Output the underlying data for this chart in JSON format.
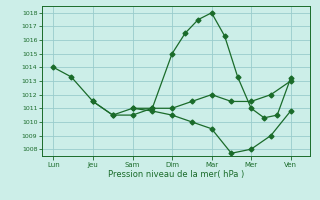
{
  "background_color": "#cceee8",
  "grid_color": "#99cccc",
  "line_color": "#1a6b2a",
  "xlabel": "Pression niveau de la mer( hPa )",
  "ylim": [
    1007.5,
    1018.5
  ],
  "yticks": [
    1008,
    1009,
    1010,
    1011,
    1012,
    1013,
    1014,
    1015,
    1016,
    1017,
    1018
  ],
  "x_labels": [
    "Lun",
    "Jeu",
    "Sam",
    "Dim",
    "Mar",
    "Mer",
    "Ven"
  ],
  "x_positions": [
    0,
    1,
    2,
    3,
    4,
    5,
    6
  ],
  "xlim": [
    -0.3,
    6.5
  ],
  "line1_x": [
    0,
    0.45,
    1,
    1.5,
    2,
    2.5,
    3,
    3.33,
    3.66,
    4,
    4.33,
    4.66,
    5,
    5.33,
    5.66,
    6
  ],
  "line1_y": [
    1014,
    1013.3,
    1011.5,
    1010.5,
    1011,
    1011,
    1015,
    1016.5,
    1017.5,
    1018,
    1016.3,
    1013.3,
    1011,
    1010.3,
    1010.5,
    1013.2
  ],
  "line2_x": [
    1,
    1.5,
    2,
    2.5,
    3,
    3.5,
    4,
    4.5,
    5,
    5.5,
    6
  ],
  "line2_y": [
    1011.5,
    1010.5,
    1010.5,
    1011,
    1011,
    1011.5,
    1012,
    1011.5,
    1011.5,
    1012,
    1013
  ],
  "line3_x": [
    2,
    2.5,
    3,
    3.5,
    4,
    4.5,
    5,
    5.5,
    6
  ],
  "line3_y": [
    1011,
    1010.8,
    1010.5,
    1010.0,
    1009.5,
    1007.7,
    1008.0,
    1009.0,
    1010.8
  ]
}
